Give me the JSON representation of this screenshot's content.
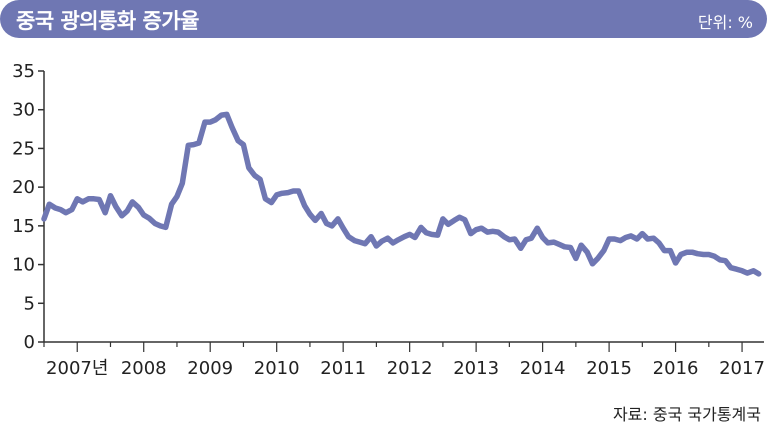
{
  "header": {
    "title": "중국 광의통화 증가율",
    "unit": "단위: %"
  },
  "source": "자료: 중국 국가통계국",
  "colors": {
    "line": "#6f77b3",
    "header_bg": "#6f77b3",
    "header_text": "#ffffff"
  },
  "chart_data": {
    "type": "line",
    "title": "중국 광의통화 증가율",
    "xlabel": "",
    "ylabel": "",
    "ylim": [
      0,
      35
    ],
    "yticks": [
      0,
      5,
      10,
      15,
      20,
      25,
      30,
      35
    ],
    "xlim": [
      2007.0,
      2017.83
    ],
    "xtick_labels": [
      {
        "x": 2007,
        "label": "2007년"
      },
      {
        "x": 2008,
        "label": "2008"
      },
      {
        "x": 2009,
        "label": "2009"
      },
      {
        "x": 2010,
        "label": "2010"
      },
      {
        "x": 2011,
        "label": "2011"
      },
      {
        "x": 2012,
        "label": "2012"
      },
      {
        "x": 2013,
        "label": "2013"
      },
      {
        "x": 2014,
        "label": "2014"
      },
      {
        "x": 2015,
        "label": "2015"
      },
      {
        "x": 2016,
        "label": "2016"
      },
      {
        "x": 2017,
        "label": "2017"
      }
    ],
    "grid": false,
    "series": [
      {
        "color": "#6f77b3",
        "x": [
          2007.0,
          2007.08,
          2007.17,
          2007.25,
          2007.33,
          2007.42,
          2007.5,
          2007.58,
          2007.67,
          2007.75,
          2007.83,
          2007.92,
          2008.0,
          2008.08,
          2008.17,
          2008.25,
          2008.33,
          2008.42,
          2008.5,
          2008.58,
          2008.67,
          2008.75,
          2008.83,
          2008.92,
          2009.0,
          2009.08,
          2009.17,
          2009.25,
          2009.33,
          2009.42,
          2009.5,
          2009.58,
          2009.67,
          2009.75,
          2009.83,
          2009.92,
          2010.0,
          2010.08,
          2010.17,
          2010.25,
          2010.33,
          2010.42,
          2010.5,
          2010.58,
          2010.67,
          2010.75,
          2010.83,
          2010.92,
          2011.0,
          2011.08,
          2011.17,
          2011.25,
          2011.33,
          2011.42,
          2011.5,
          2011.58,
          2011.67,
          2011.75,
          2011.83,
          2011.92,
          2012.0,
          2012.08,
          2012.17,
          2012.25,
          2012.33,
          2012.42,
          2012.5,
          2012.58,
          2012.67,
          2012.75,
          2012.83,
          2012.92,
          2013.0,
          2013.08,
          2013.17,
          2013.25,
          2013.33,
          2013.42,
          2013.5,
          2013.58,
          2013.67,
          2013.75,
          2013.83,
          2013.92,
          2014.0,
          2014.08,
          2014.17,
          2014.25,
          2014.33,
          2014.42,
          2014.5,
          2014.58,
          2014.67,
          2014.75,
          2014.83,
          2014.92,
          2015.0,
          2015.08,
          2015.17,
          2015.25,
          2015.33,
          2015.42,
          2015.5,
          2015.58,
          2015.67,
          2015.75,
          2015.83,
          2015.92,
          2016.0,
          2016.08,
          2016.17,
          2016.25,
          2016.33,
          2016.42,
          2016.5,
          2016.58,
          2016.67,
          2016.75,
          2016.83,
          2016.92,
          2017.0,
          2017.08,
          2017.17,
          2017.25,
          2017.33,
          2017.42,
          2017.5,
          2017.58,
          2017.67,
          2017.75
        ],
        "values": [
          15.9,
          17.8,
          17.3,
          17.1,
          16.7,
          17.1,
          18.5,
          18.1,
          18.5,
          18.5,
          18.4,
          16.7,
          18.9,
          17.5,
          16.3,
          16.9,
          18.1,
          17.4,
          16.4,
          16.0,
          15.3,
          15.0,
          14.8,
          17.8,
          18.8,
          20.5,
          25.4,
          25.5,
          25.7,
          28.4,
          28.4,
          28.7,
          29.3,
          29.4,
          27.7,
          26.0,
          25.5,
          22.5,
          21.5,
          21.0,
          18.5,
          18.0,
          19.0,
          19.2,
          19.3,
          19.5,
          19.5,
          17.6,
          16.5,
          15.7,
          16.6,
          15.3,
          15.0,
          15.9,
          14.7,
          13.6,
          13.1,
          12.9,
          12.7,
          13.6,
          12.4,
          13.0,
          13.4,
          12.8,
          13.2,
          13.6,
          13.9,
          13.5,
          14.8,
          14.1,
          13.9,
          13.8,
          15.9,
          15.2,
          15.7,
          16.1,
          15.8,
          14.0,
          14.5,
          14.7,
          14.2,
          14.3,
          14.2,
          13.6,
          13.2,
          13.3,
          12.1,
          13.2,
          13.4,
          14.7,
          13.5,
          12.8,
          12.9,
          12.6,
          12.3,
          12.2,
          10.8,
          12.5,
          11.6,
          10.1,
          10.8,
          11.8,
          13.3,
          13.3,
          13.1,
          13.5,
          13.7,
          13.3,
          14.0,
          13.3,
          13.4,
          12.8,
          11.8,
          11.8,
          10.2,
          11.3,
          11.6,
          11.6,
          11.4,
          11.3,
          11.3,
          11.1,
          10.6,
          10.5,
          9.6,
          9.4,
          9.2,
          8.9,
          9.2,
          8.8
        ]
      }
    ]
  }
}
